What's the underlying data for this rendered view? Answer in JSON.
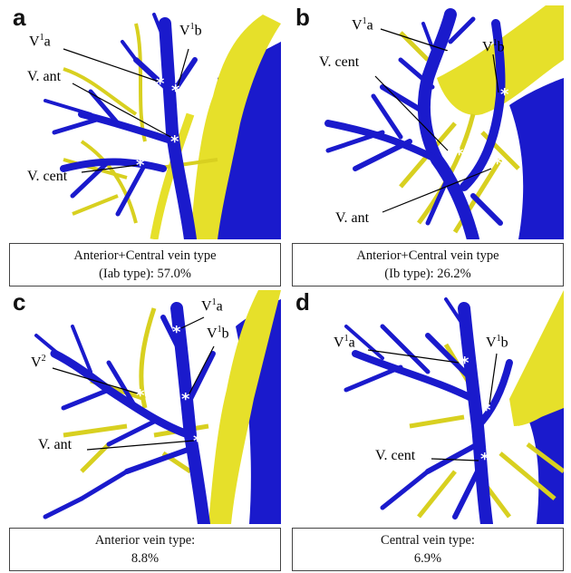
{
  "panels": [
    {
      "letter": "a",
      "caption_line1": "Anterior+Central vein type",
      "caption_line2": "(Iab type): 57.0%",
      "labels": {
        "v1a_base": "V",
        "v1a_sup": "1",
        "v1a_tail": "a",
        "v1b_base": "V",
        "v1b_sup": "1",
        "v1b_tail": "b",
        "vant": "V. ant",
        "vcent": "V. cent"
      }
    },
    {
      "letter": "b",
      "caption_line1": "Anterior+Central vein type",
      "caption_line2": "(Ib type): 26.2%",
      "labels": {
        "v1a_base": "V",
        "v1a_sup": "1",
        "v1a_tail": "a",
        "v1b_base": "V",
        "v1b_sup": "1",
        "v1b_tail": "b",
        "vant": "V. ant",
        "vcent": "V. cent"
      }
    },
    {
      "letter": "c",
      "caption_line1": "Anterior vein  type:",
      "caption_line2": "8.8%",
      "labels": {
        "v1a_base": "V",
        "v1a_sup": "1",
        "v1a_tail": "a",
        "v1b_base": "V",
        "v1b_sup": "1",
        "v1b_tail": "b",
        "v2_base": "V",
        "v2_sup": "2",
        "vant": "V. ant"
      }
    },
    {
      "letter": "d",
      "caption_line1": "Central vein  type:",
      "caption_line2": "6.9%",
      "labels": {
        "v1a_base": "V",
        "v1a_sup": "1",
        "v1a_tail": "a",
        "v1b_base": "V",
        "v1b_sup": "1",
        "v1b_tail": "b",
        "vcent": "V. cent"
      }
    }
  ],
  "asterisk": "*",
  "colors": {
    "vein": "#1a1acc",
    "artery": "#e6e02a",
    "background_vessel": "#1a1acc"
  }
}
